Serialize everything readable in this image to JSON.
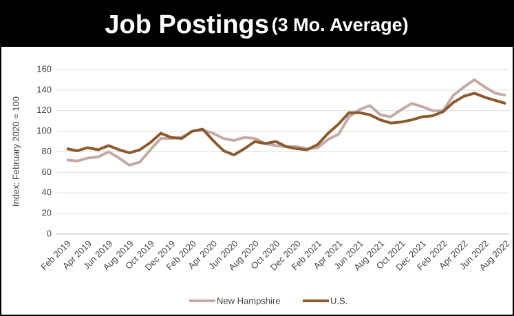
{
  "chart_data": {
    "type": "line",
    "title": "Job Postings",
    "subtitle": "(3 Mo. Average)",
    "y_label": "Index: February 2020 = 100",
    "categories": [
      "Feb 2019",
      null,
      "Apr 2019",
      null,
      "Jun 2019",
      null,
      "Aug 2019",
      null,
      "Oct 2019",
      null,
      "Dec 2019",
      null,
      "Feb 2020",
      null,
      "Apr 2020",
      null,
      "Jun 2020",
      null,
      "Aug 2020",
      null,
      "Oct 2020",
      null,
      "Dec 2020",
      null,
      "Feb 2021",
      null,
      "Apr 2021",
      null,
      "Jun 2021",
      null,
      "Aug 2021",
      null,
      "Oct 2021",
      null,
      "Dec 2021",
      null,
      "Feb 2022",
      null,
      "Apr 2022",
      null,
      "Jun 2022",
      null,
      "Aug 2022"
    ],
    "series": [
      {
        "name": "New Hampshire",
        "color": "#c4aaa6",
        "values": [
          72,
          71,
          74,
          75,
          80,
          74,
          67,
          70,
          82,
          93,
          93,
          94,
          100,
          101,
          98,
          93,
          91,
          94,
          93,
          88,
          86,
          85,
          85,
          83,
          84,
          92,
          97,
          114,
          121,
          125,
          116,
          114,
          121,
          127,
          124,
          120,
          120,
          135,
          143,
          150,
          143,
          137,
          135
        ]
      },
      {
        "name": "U.S.",
        "color": "#8c5a2e",
        "values": [
          83,
          81,
          84,
          82,
          86,
          82,
          79,
          82,
          89,
          98,
          94,
          93,
          100,
          102,
          91,
          81,
          77,
          83,
          90,
          88,
          90,
          85,
          83,
          82,
          87,
          98,
          107,
          118,
          118,
          116,
          111,
          108,
          109,
          111,
          114,
          115,
          119,
          128,
          134,
          137,
          133,
          130,
          127
        ]
      }
    ],
    "ylim": [
      0,
      160
    ],
    "yticks": [
      0,
      20,
      40,
      60,
      80,
      100,
      120,
      140,
      160
    ],
    "grid": true,
    "legend": "bottom"
  }
}
